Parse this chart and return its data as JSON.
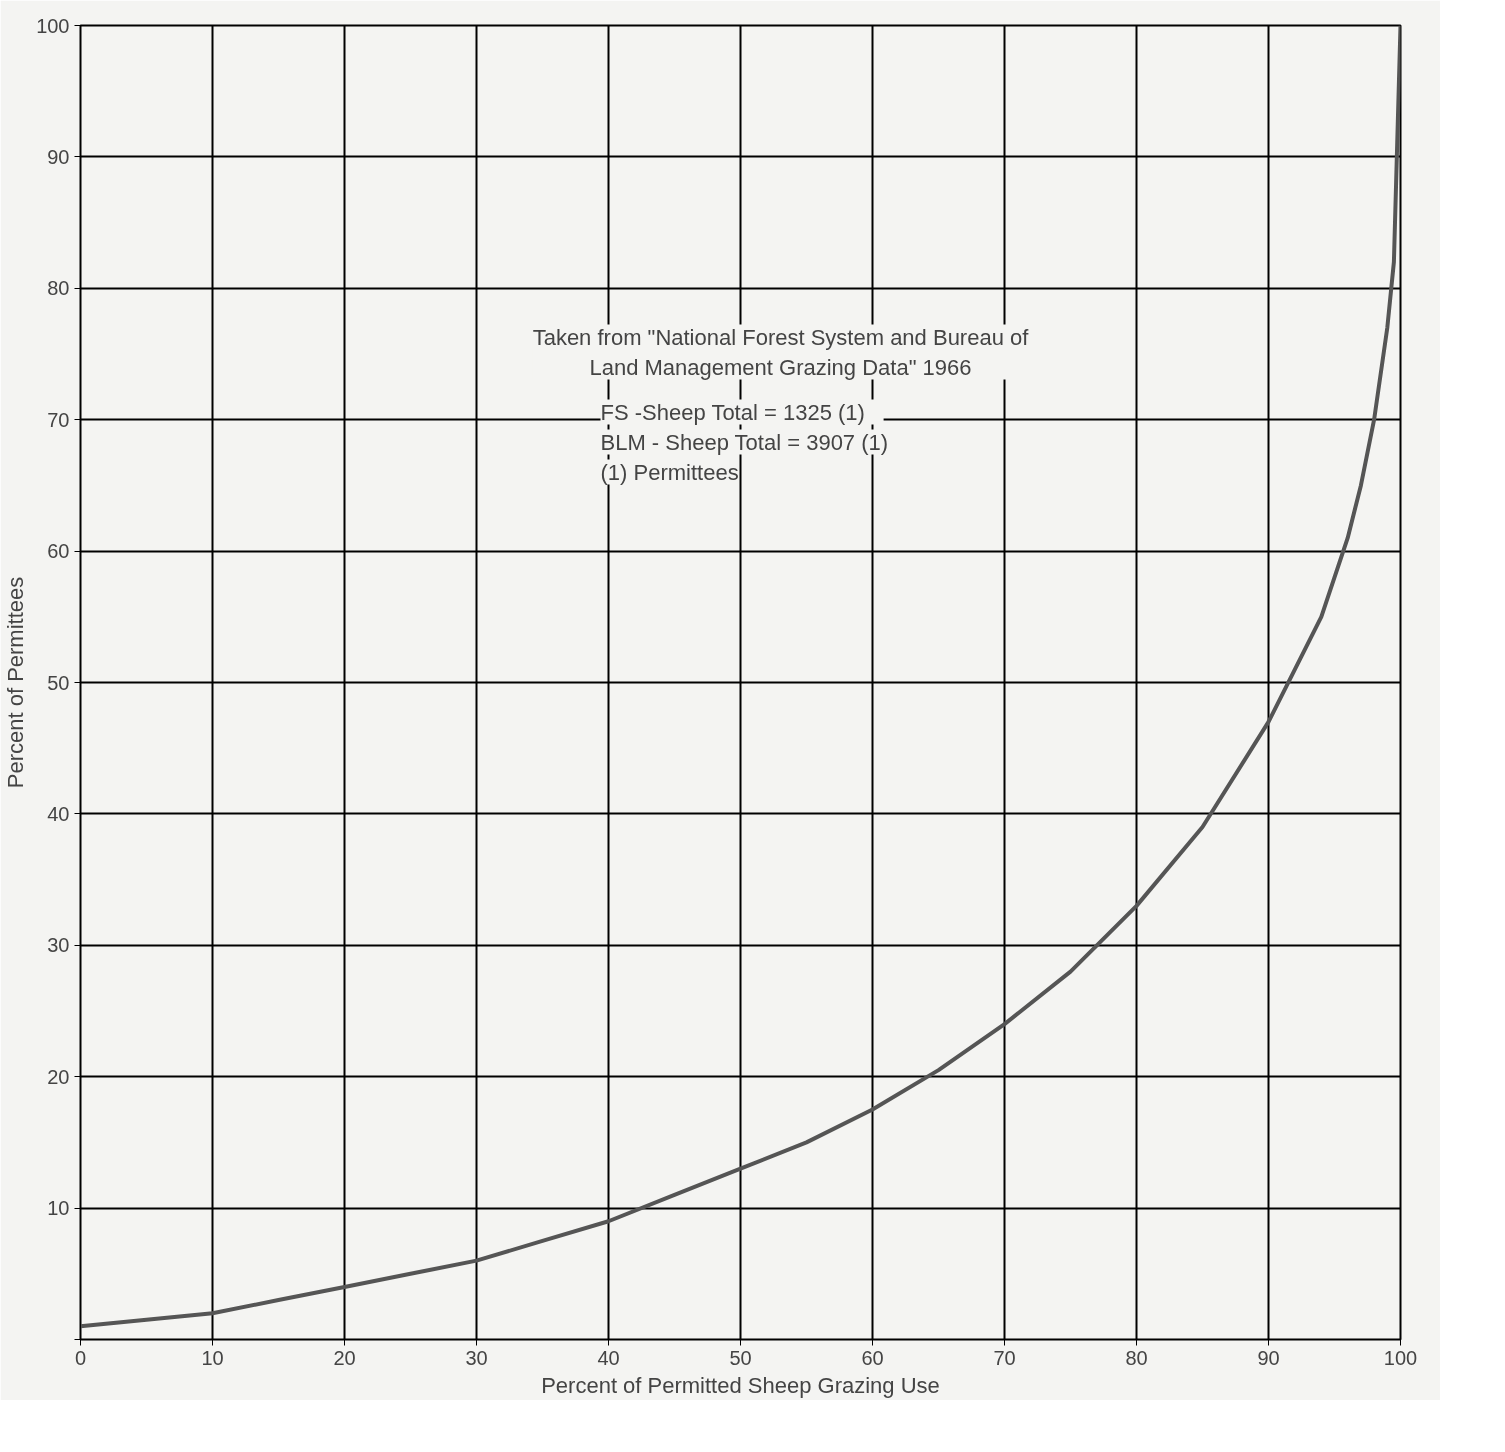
{
  "chart_data": {
    "type": "line",
    "xlabel": "Percent of Permitted Sheep Grazing Use",
    "ylabel": "Percent of Permittees",
    "x": [
      0,
      5,
      10,
      15,
      20,
      25,
      30,
      35,
      40,
      45,
      50,
      55,
      60,
      65,
      70,
      75,
      80,
      85,
      90,
      92,
      94,
      95,
      96,
      97,
      98,
      99,
      99.5,
      100
    ],
    "series": [
      {
        "color": "#555555",
        "values": [
          1,
          1.5,
          2,
          3,
          4,
          5,
          6,
          7.5,
          9,
          11,
          13,
          15,
          17.5,
          20.5,
          24,
          28,
          33,
          39,
          47,
          51,
          55,
          58,
          61,
          65,
          70,
          77,
          82,
          100
        ]
      }
    ],
    "xlim": [
      0,
      100
    ],
    "ylim": [
      0,
      100
    ],
    "xticks": [
      0,
      10,
      20,
      30,
      40,
      50,
      60,
      70,
      80,
      90,
      100
    ],
    "yticks": [
      {
        "value": 0,
        "label": null
      },
      10,
      20,
      30,
      40,
      50,
      60,
      70,
      80,
      90,
      100
    ],
    "grid": true,
    "marker": "none",
    "line_style": "solid",
    "annotations": [
      "Taken from \"National Forest System and Bureau of Land Management Grazing Data\" 1966",
      "FS    -Sheep Total = 1325 (1)",
      "BLM - Sheep Total = 3907 (1)",
      "(1) Permittees"
    ]
  }
}
